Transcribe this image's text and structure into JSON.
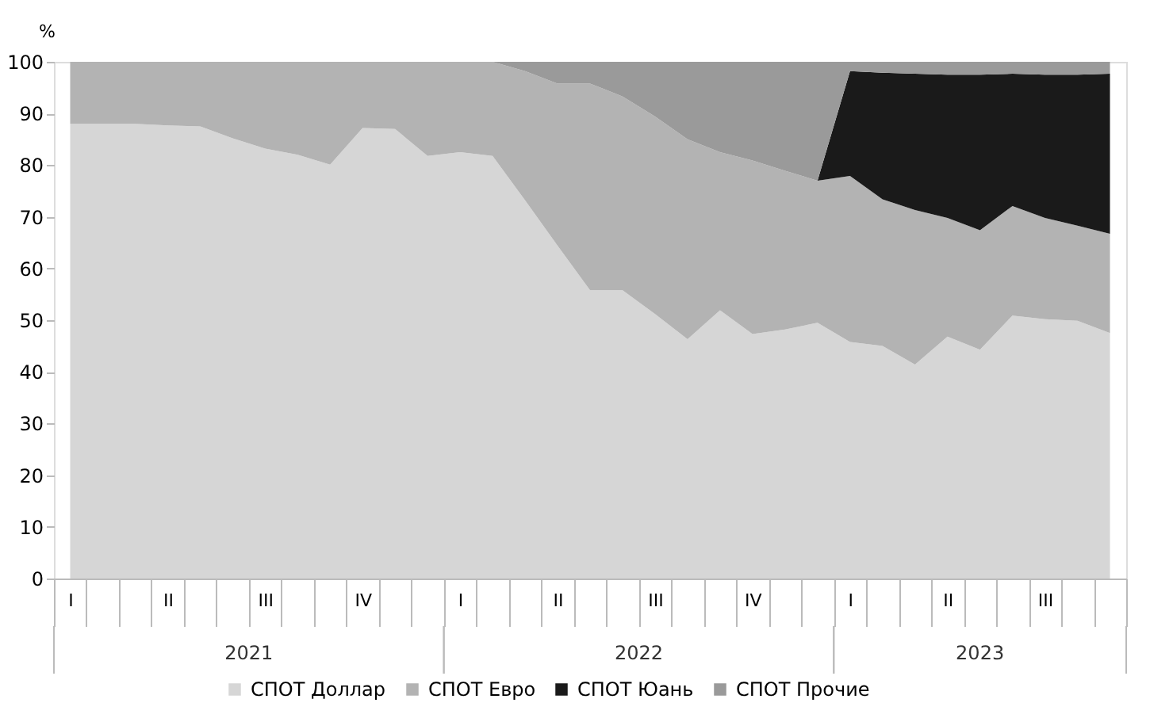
{
  "chart_data": {
    "type": "area",
    "stacked": true,
    "ylabel": "%",
    "categories": [
      "I",
      null,
      null,
      "II",
      null,
      null,
      "III",
      null,
      null,
      "IV",
      null,
      null,
      "I",
      null,
      null,
      "II",
      null,
      null,
      "III",
      null,
      null,
      "IV",
      null,
      null,
      "I",
      null,
      null,
      "II",
      null,
      null,
      "III",
      null,
      null
    ],
    "annotations": [
      "2021",
      "2022",
      "2023"
    ],
    "series": [
      {
        "name": "СПОТ Доллар",
        "color": "#d6d6d6",
        "values": [
          88,
          88,
          88,
          87.7,
          87.5,
          85.2,
          83.2,
          82,
          80.1,
          87.2,
          87,
          81.8,
          82.5,
          81.8,
          73.2,
          64.4,
          55.8,
          55.8,
          51.2,
          46.3,
          51.9,
          47.3,
          48.2,
          49.5,
          45.8,
          45,
          41.4,
          46.8,
          44.3,
          50.9,
          50.2,
          49.9,
          47.5
        ]
      },
      {
        "name": "СПОТ Евро",
        "color": "#b3b3b3",
        "values": [
          12,
          12,
          12,
          12.3,
          12.5,
          14.8,
          16.8,
          18,
          19.9,
          12.8,
          13,
          18.2,
          17.5,
          18.2,
          25,
          31.4,
          40,
          37.5,
          38.2,
          38.7,
          30.6,
          33.6,
          30.7,
          27.5,
          32.1,
          28.4,
          29.9,
          23,
          23.1,
          21.2,
          19.6,
          18.4,
          19.2
        ]
      },
      {
        "name": "СПОТ Юань",
        "color": "#1a1a1a",
        "values": [
          0,
          0,
          0,
          0,
          0,
          0,
          0,
          0,
          0,
          0,
          0,
          0,
          0,
          0,
          0,
          0,
          0,
          0,
          0,
          0,
          0,
          0,
          0,
          0,
          20.3,
          24.5,
          26.4,
          27.7,
          30.1,
          25.6,
          27.7,
          29.2,
          31
        ]
      },
      {
        "name": "СПОТ Прочие",
        "color": "#9a9a9a",
        "values": [
          0,
          0,
          0,
          0,
          0,
          0,
          0,
          0,
          0,
          0,
          0,
          0,
          0,
          0,
          1.8,
          4.2,
          4.2,
          6.7,
          10.6,
          15,
          17.5,
          19.1,
          21.1,
          23,
          1.8,
          2.1,
          2.3,
          2.5,
          2.5,
          2.3,
          2.5,
          2.5,
          2.3
        ]
      }
    ],
    "ylim": [
      0,
      100
    ],
    "yticks": [
      0,
      10,
      20,
      30,
      40,
      50,
      60,
      70,
      80,
      90,
      100
    ],
    "grid": false,
    "legend": "bottom"
  }
}
